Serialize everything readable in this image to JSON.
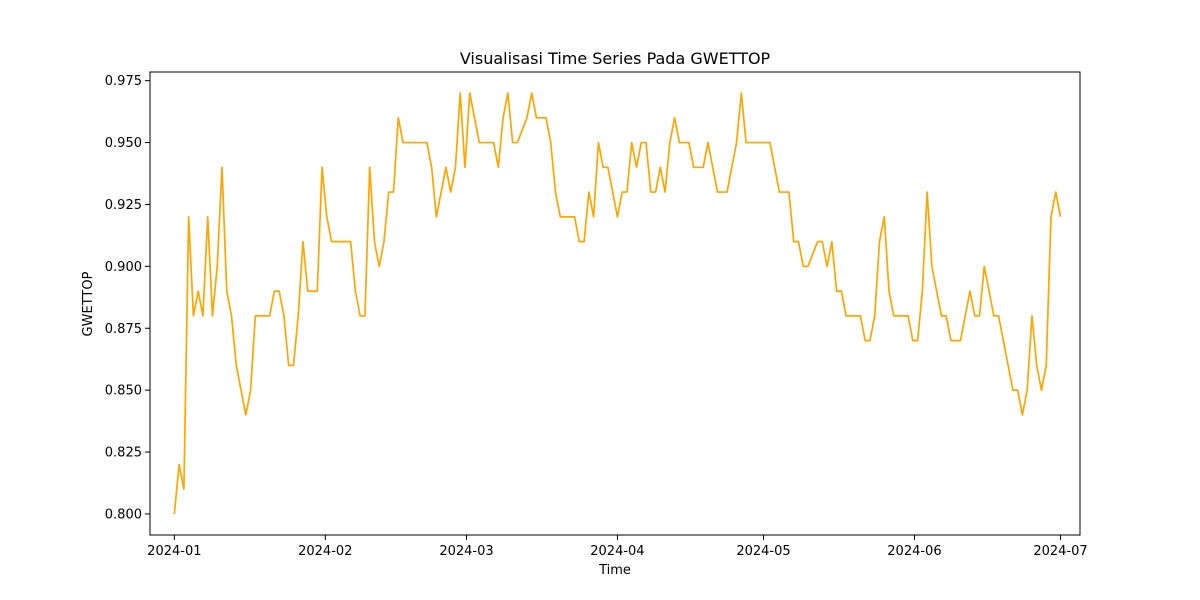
{
  "chart_data": {
    "type": "line",
    "title": "Visualisasi Time Series Pada GWETTOP",
    "xlabel": "Time",
    "ylabel": "GWETTOP",
    "x_start": "2024-01-01",
    "x_end": "2024-07-01",
    "xlim": [
      "2023-12-27",
      "2024-07-05"
    ],
    "ylim": [
      0.7915,
      0.9785
    ],
    "x_ticks": [
      {
        "date": "2024-01-01",
        "label": "2024-01"
      },
      {
        "date": "2024-02-01",
        "label": "2024-02"
      },
      {
        "date": "2024-03-01",
        "label": "2024-03"
      },
      {
        "date": "2024-04-01",
        "label": "2024-04"
      },
      {
        "date": "2024-05-01",
        "label": "2024-05"
      },
      {
        "date": "2024-06-01",
        "label": "2024-06"
      },
      {
        "date": "2024-07-01",
        "label": "2024-07"
      }
    ],
    "y_ticks": [
      {
        "value": 0.8,
        "label": "0.800"
      },
      {
        "value": 0.825,
        "label": "0.825"
      },
      {
        "value": 0.85,
        "label": "0.850"
      },
      {
        "value": 0.875,
        "label": "0.875"
      },
      {
        "value": 0.9,
        "label": "0.900"
      },
      {
        "value": 0.925,
        "label": "0.925"
      },
      {
        "value": 0.95,
        "label": "0.950"
      },
      {
        "value": 0.975,
        "label": "0.975"
      }
    ],
    "grid": false,
    "series": [
      {
        "color": "#ffa500",
        "values": [
          0.8,
          0.82,
          0.81,
          0.92,
          0.88,
          0.89,
          0.88,
          0.92,
          0.88,
          0.9,
          0.94,
          0.89,
          0.88,
          0.86,
          0.85,
          0.84,
          0.85,
          0.88,
          0.88,
          0.88,
          0.88,
          0.89,
          0.89,
          0.88,
          0.86,
          0.86,
          0.88,
          0.91,
          0.89,
          0.89,
          0.89,
          0.94,
          0.92,
          0.91,
          0.91,
          0.91,
          0.91,
          0.91,
          0.89,
          0.88,
          0.88,
          0.94,
          0.91,
          0.9,
          0.91,
          0.93,
          0.93,
          0.96,
          0.95,
          0.95,
          0.95,
          0.95,
          0.95,
          0.95,
          0.94,
          0.92,
          0.93,
          0.94,
          0.93,
          0.94,
          0.97,
          0.94,
          0.97,
          0.96,
          0.95,
          0.95,
          0.95,
          0.95,
          0.94,
          0.96,
          0.97,
          0.95,
          0.95,
          0.955,
          0.96,
          0.97,
          0.96,
          0.96,
          0.96,
          0.95,
          0.93,
          0.92,
          0.92,
          0.92,
          0.92,
          0.91,
          0.91,
          0.93,
          0.92,
          0.95,
          0.94,
          0.94,
          0.93,
          0.92,
          0.93,
          0.93,
          0.95,
          0.94,
          0.95,
          0.95,
          0.93,
          0.93,
          0.94,
          0.93,
          0.95,
          0.96,
          0.95,
          0.95,
          0.95,
          0.94,
          0.94,
          0.94,
          0.95,
          0.94,
          0.93,
          0.93,
          0.93,
          0.94,
          0.95,
          0.97,
          0.95,
          0.95,
          0.95,
          0.95,
          0.95,
          0.95,
          0.94,
          0.93,
          0.93,
          0.93,
          0.91,
          0.91,
          0.9,
          0.9,
          0.905,
          0.91,
          0.91,
          0.9,
          0.91,
          0.89,
          0.89,
          0.88,
          0.88,
          0.88,
          0.88,
          0.87,
          0.87,
          0.88,
          0.91,
          0.92,
          0.89,
          0.88,
          0.88,
          0.88,
          0.88,
          0.87,
          0.87,
          0.89,
          0.93,
          0.9,
          0.89,
          0.88,
          0.88,
          0.87,
          0.87,
          0.87,
          0.88,
          0.89,
          0.88,
          0.88,
          0.9,
          0.89,
          0.88,
          0.88,
          0.87,
          0.86,
          0.85,
          0.85,
          0.84,
          0.85,
          0.88,
          0.86,
          0.85,
          0.86,
          0.92,
          0.93,
          0.92
        ]
      }
    ]
  }
}
